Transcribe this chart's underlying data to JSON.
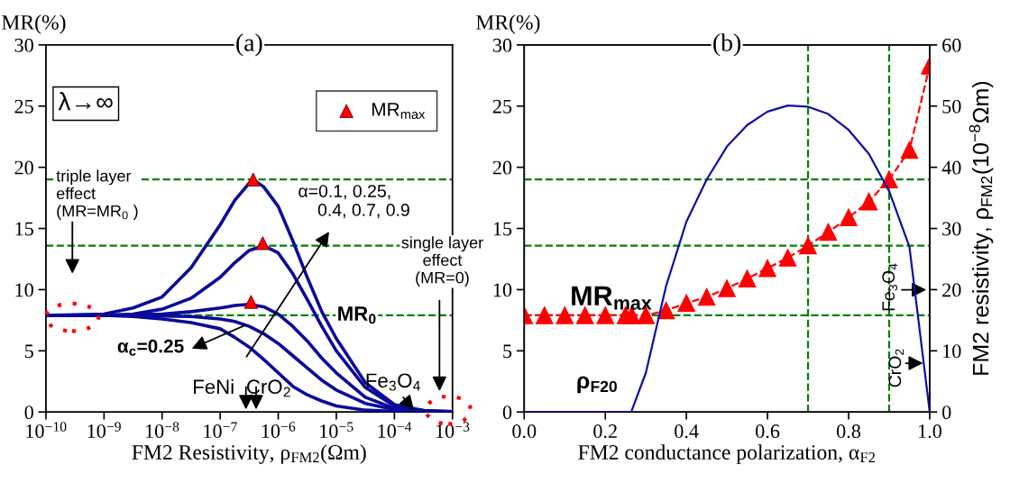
{
  "chart_data": [
    {
      "type": "line",
      "title": "(a)",
      "xlabel": "FM2 Resistivity, ρ$_{FM2}$(Ωm)",
      "ylabel": "MR(%)",
      "log": "x",
      "xlim": [
        1e-10,
        0.001
      ],
      "xticks": [
        {
          "value": 1e-10,
          "label": "10$^{−10}$"
        },
        {
          "value": 1e-09,
          "label": "10$^{−9}$"
        },
        {
          "value": 1e-08,
          "label": "10$^{−8}$"
        },
        {
          "value": 1e-07,
          "label": "10$^{−7}$"
        },
        {
          "value": 1e-06,
          "label": "10$^{−6}$"
        },
        {
          "value": 1e-05,
          "label": "10$^{−5}$"
        },
        {
          "value": 0.0001,
          "label": "10$^{−4}$"
        },
        {
          "value": 0.001,
          "label": "10$^{−3}$"
        }
      ],
      "ylim": [
        0,
        30
      ],
      "yticks": [
        0,
        5,
        10,
        15,
        20,
        25,
        30
      ],
      "legend": "top right",
      "series": [
        {
          "color": "#0a0a9a",
          "x": [
            1e-10,
            1e-09,
            3.16e-09,
            1e-08,
            3.16e-08,
            1e-07,
            1.78e-07,
            3.16e-07,
            3.7e-07,
            5.62e-07,
            1e-06,
            1.78e-06,
            3.16e-06,
            5.62e-06,
            1e-05,
            3.16e-05,
            0.0001,
            0.000316,
            0.001
          ],
          "values": [
            7.9,
            8.0,
            8.5,
            9.4,
            11.8,
            15.3,
            17.3,
            18.7,
            19.0,
            18.4,
            16.8,
            14.0,
            11.0,
            8.2,
            6.0,
            2.4,
            0.6,
            0.12,
            0.03
          ]
        },
        {
          "color": "#0a0a9a",
          "x": [
            1e-10,
            1e-09,
            3.16e-09,
            1e-08,
            3.16e-08,
            1e-07,
            1.78e-07,
            3.16e-07,
            5.62e-07,
            1e-06,
            1.78e-06,
            3.16e-06,
            5.62e-06,
            1e-05,
            3.16e-05,
            0.0001,
            0.000316,
            0.001
          ],
          "values": [
            7.9,
            7.9,
            8.0,
            8.4,
            9.3,
            11.0,
            12.2,
            13.2,
            13.6,
            13.0,
            11.3,
            9.2,
            7.0,
            5.0,
            2.0,
            0.5,
            0.1,
            0.03
          ]
        },
        {
          "color": "#0a0a9a",
          "x": [
            1e-10,
            1e-09,
            3.16e-09,
            1e-08,
            3.16e-08,
            1e-07,
            1.78e-07,
            3.16e-07,
            5.62e-07,
            1e-06,
            1.78e-06,
            3.16e-06,
            5.62e-06,
            1e-05,
            3.16e-05,
            0.0001,
            0.000562
          ],
          "values": [
            7.9,
            7.9,
            7.95,
            8.0,
            8.2,
            8.5,
            8.7,
            8.8,
            8.6,
            8.0,
            7.0,
            5.8,
            4.4,
            3.2,
            1.2,
            0.3,
            0.03
          ]
        },
        {
          "color": "#0a0a9a",
          "x": [
            1e-10,
            1e-09,
            3.16e-09,
            1e-08,
            3.16e-08,
            1e-07,
            1.78e-07,
            3.16e-07,
            5.62e-07,
            1e-06,
            1.78e-06,
            3.16e-06,
            5.62e-06,
            1e-05,
            3.16e-05,
            0.0001,
            0.00042
          ],
          "values": [
            7.9,
            7.9,
            7.9,
            7.85,
            7.8,
            7.6,
            7.4,
            7.0,
            6.4,
            5.6,
            4.6,
            3.6,
            2.6,
            1.8,
            0.7,
            0.2,
            0.03
          ]
        },
        {
          "color": "#0a0a9a",
          "x": [
            1e-10,
            1e-09,
            3.16e-09,
            1e-08,
            3.16e-08,
            1e-07,
            1.78e-07,
            3.16e-07,
            5.62e-07,
            1e-06,
            1.78e-06,
            3.16e-06,
            5.62e-06,
            1e-05,
            3.16e-05,
            0.0001,
            0.000316
          ],
          "values": [
            7.9,
            7.9,
            7.8,
            7.6,
            7.3,
            6.8,
            6.1,
            5.3,
            4.3,
            3.2,
            2.1,
            1.4,
            0.9,
            0.5,
            0.15,
            0.04,
            0.01
          ]
        },
        {
          "type": "scatter",
          "name": "MR$_{max}$",
          "color": "#ff0000",
          "marker": "triangle",
          "x": [
            3.7e-07,
            5.4e-07,
            3.4e-07
          ],
          "values": [
            19.0,
            13.8,
            9.0
          ]
        }
      ],
      "ref_lines": [
        {
          "axis": "y",
          "value": 19.0,
          "color": "#008000",
          "line_style": "dashed"
        },
        {
          "axis": "y",
          "value": 13.6,
          "color": "#008000",
          "line_style": "dashed"
        },
        {
          "axis": "y",
          "value": 7.9,
          "label": "MR$_{0}$",
          "color": "#008000",
          "line_style": "dashed"
        }
      ],
      "annotations": [
        "λ→∞",
        "triple layer\neffect\n(MR=MR$_{0}$ )",
        "α=0.1, 0.25,\n    0.4, 0.7, 0.9",
        "α$_{c}$=0.25",
        "single layer\neffect\n(MR=0)",
        "FeNi",
        "CrO$_{2}$",
        "Fe$_{3}$O$_{4}$"
      ]
    },
    {
      "type": "line",
      "title": "(b)",
      "xlabel": "FM2 conductance polarization, α$_{F2}$",
      "ylabel": "MR(%)",
      "y2label": "FM2 resistivity, ρ$_{FM2}$(10$^{−8}$Ωm)",
      "xlim": [
        0,
        1.0
      ],
      "xticks": [
        {
          "value": 0,
          "label": "0.0"
        },
        0.2,
        0.4,
        0.6,
        0.8,
        {
          "value": 1,
          "label": "1.0"
        }
      ],
      "ylim": [
        0,
        30
      ],
      "yticks": [
        0,
        5,
        10,
        15,
        20,
        25,
        30
      ],
      "y2lim": [
        0,
        60
      ],
      "y2ticks": [
        0,
        10,
        20,
        30,
        40,
        50,
        60
      ],
      "series": [
        {
          "color": "#ff0000",
          "marker": "triangle",
          "line_style": "dashed",
          "x": [
            0,
            0.05,
            0.1,
            0.15,
            0.2,
            0.25,
            0.265,
            0.3,
            0.35,
            0.4,
            0.45,
            0.5,
            0.55,
            0.6,
            0.65,
            0.7,
            0.75,
            0.8,
            0.85,
            0.9,
            0.95,
            1.0
          ],
          "values": [
            7.9,
            7.9,
            7.9,
            7.9,
            7.9,
            7.9,
            7.9,
            7.9,
            8.3,
            8.9,
            9.4,
            10.1,
            10.9,
            11.75,
            12.6,
            13.6,
            14.7,
            15.9,
            17.2,
            19.0,
            21.4,
            28.3
          ]
        },
        {
          "color": "#1010a0",
          "axis": "y2",
          "x": [
            0,
            0.264,
            0.3,
            0.35,
            0.4,
            0.45,
            0.5,
            0.55,
            0.6,
            0.65,
            0.7,
            0.75,
            0.8,
            0.85,
            0.9,
            0.95,
            1.0
          ],
          "values": [
            0,
            0,
            6.4,
            20.6,
            31.1,
            38,
            43.4,
            46.9,
            49.1,
            50.1,
            49.9,
            48.7,
            46.1,
            42.2,
            36.1,
            27.0,
            0
          ]
        }
      ],
      "ref_lines": [
        {
          "axis": "y",
          "value": 19.0,
          "color": "#008000",
          "line_style": "dashed"
        },
        {
          "axis": "y",
          "value": 13.6,
          "color": "#008000",
          "line_style": "dashed"
        },
        {
          "axis": "y",
          "value": 7.9,
          "color": "#008000",
          "line_style": "dashed"
        },
        {
          "axis": "x",
          "value": 0.7,
          "color": "#008000",
          "line_style": "dashed"
        },
        {
          "axis": "x",
          "value": 0.9,
          "color": "#008000",
          "line_style": "dashed"
        }
      ],
      "annotations": [
        "MR$_{max}$",
        "ρ$_{F20}$",
        "Fe$_{3}$O$_{4}$",
        "CrO$_{2}$"
      ]
    }
  ]
}
